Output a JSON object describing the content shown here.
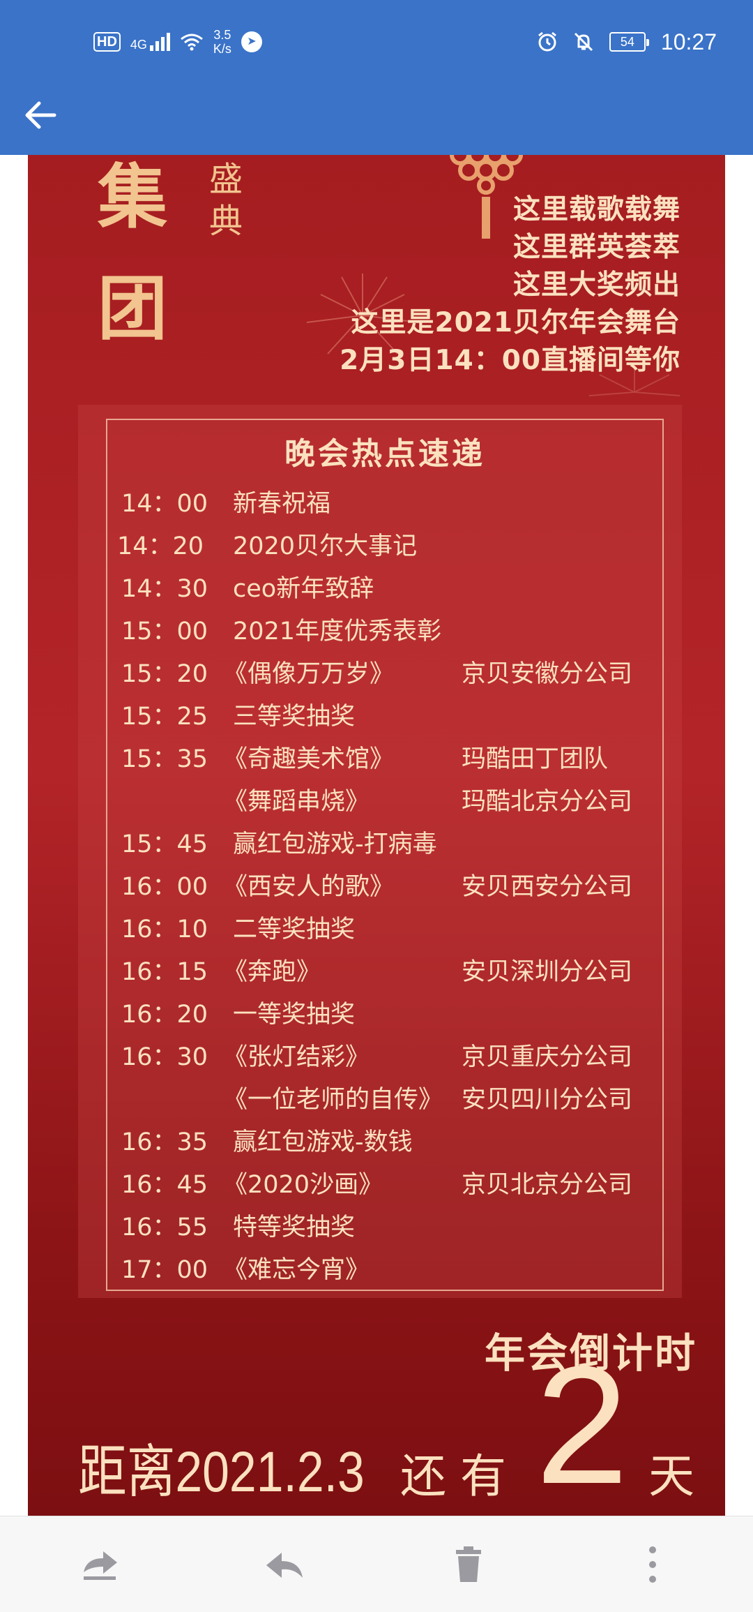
{
  "status_bar": {
    "hd": "HD",
    "network": "4G",
    "speed_value": "3.5",
    "speed_unit": "K/s",
    "battery": "54",
    "time": "10:27",
    "icons": [
      "wifi-icon",
      "navigation-icon",
      "alarm-icon",
      "mute-bell-icon",
      "battery-icon"
    ]
  },
  "toolbar": {
    "back_icon": "arrow-left-icon"
  },
  "poster": {
    "header_left": [
      "集",
      "团"
    ],
    "header_sub": [
      "盛",
      "典"
    ],
    "slogans": [
      "这里载歌载舞",
      "这里群英荟萃",
      "这里大奖频出",
      "这里是2021贝尔年会舞台",
      "2月3日14：00直播间等你"
    ],
    "program_title": "晚会热点速递",
    "program": [
      {
        "time": "14：00",
        "name": "新春祝福",
        "org": ""
      },
      {
        "time": "14：20",
        "name": "2020贝尔大事记",
        "org": ""
      },
      {
        "time": "14：30",
        "name": "ceo新年致辞",
        "org": ""
      },
      {
        "time": "15：00",
        "name": "2021年度优秀表彰",
        "org": ""
      },
      {
        "time": "15：20",
        "name": "《偶像万万岁》",
        "org": "京贝安徽分公司"
      },
      {
        "time": "15：25",
        "name": "三等奖抽奖",
        "org": ""
      },
      {
        "time": "15：35",
        "name": "《奇趣美术馆》",
        "org": "玛酷田丁团队"
      },
      {
        "time": "",
        "name": "《舞蹈串烧》",
        "org": "玛酷北京分公司"
      },
      {
        "time": "15：45",
        "name": "赢红包游戏-打病毒",
        "org": ""
      },
      {
        "time": "16：00",
        "name": "《西安人的歌》",
        "org": "安贝西安分公司"
      },
      {
        "time": "16：10",
        "name": "二等奖抽奖",
        "org": ""
      },
      {
        "time": "16：15",
        "name": "《奔跑》",
        "org": "安贝深圳分公司"
      },
      {
        "time": "16：20",
        "name": "一等奖抽奖",
        "org": ""
      },
      {
        "time": "16：30",
        "name": "《张灯结彩》",
        "org": "京贝重庆分公司"
      },
      {
        "time": "",
        "name": "《一位老师的自传》",
        "org": "安贝四川分公司"
      },
      {
        "time": "16：35",
        "name": "赢红包游戏-数钱",
        "org": ""
      },
      {
        "time": "16：45",
        "name": "《2020沙画》",
        "org": "京贝北京分公司"
      },
      {
        "time": "16：55",
        "name": "特等奖抽奖",
        "org": ""
      },
      {
        "time": "17：00",
        "name": "《难忘今宵》",
        "org": ""
      }
    ],
    "countdown_title": "年会倒计时",
    "countdown_prefix": "距离2021.2.3",
    "countdown_still": "还有",
    "countdown_number": "2",
    "countdown_unit": "天"
  },
  "bottom_actions": [
    {
      "name": "forward-icon"
    },
    {
      "name": "reply-icon"
    },
    {
      "name": "trash-icon"
    },
    {
      "name": "more-vertical-icon"
    }
  ],
  "colors": {
    "app_bar": "#3a73c8",
    "poster_red": "#a51d20",
    "gold_text": "#fbe1bf"
  }
}
